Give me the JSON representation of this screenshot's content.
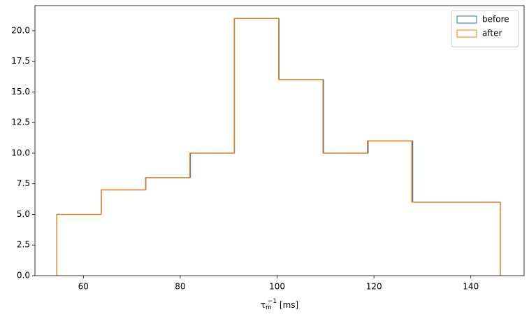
{
  "chart_data": {
    "type": "histogram",
    "xlabel": {
      "base": "τ",
      "sub": "m",
      "sup": "−1",
      "rest": " [ms]"
    },
    "xlim": [
      50,
      151
    ],
    "ylim": [
      0,
      22.05
    ],
    "xticks": [
      60,
      80,
      100,
      120,
      140
    ],
    "yticks": [
      {
        "value": 0,
        "label": "0.0"
      },
      {
        "value": 2.5,
        "label": "2.5"
      },
      {
        "value": 5,
        "label": "5.0"
      },
      {
        "value": 7.5,
        "label": "7.5"
      },
      {
        "value": 10,
        "label": "10.0"
      },
      {
        "value": 12.5,
        "label": "12.5"
      },
      {
        "value": 15,
        "label": "15.0"
      },
      {
        "value": 17.5,
        "label": "17.5"
      },
      {
        "value": 20,
        "label": "20.0"
      }
    ],
    "legend": "upper right",
    "series": [
      {
        "name": "before",
        "color": "#1f77b4",
        "bins": [
          54.5,
          63.7,
          72.9,
          82.1,
          91.2,
          100.4,
          109.6,
          118.8,
          128.0,
          137.2,
          146.1
        ],
        "values": [
          5,
          7,
          8,
          10,
          21,
          16,
          10,
          11,
          6,
          6
        ]
      },
      {
        "name": "after",
        "color": "#ff7f0e",
        "bins": [
          54.5,
          63.66,
          72.82,
          81.98,
          91.14,
          100.3,
          109.46,
          118.62,
          127.78,
          136.94,
          146.1
        ],
        "values": [
          5,
          7,
          8,
          10,
          21,
          16,
          10,
          11,
          6,
          6
        ]
      }
    ]
  }
}
